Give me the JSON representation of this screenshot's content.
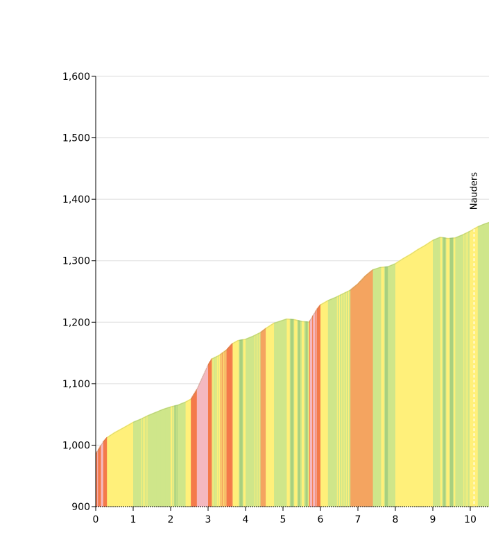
{
  "chart_data": {
    "type": "area",
    "title": "",
    "xlabel": "",
    "ylabel": "",
    "xlim": [
      0,
      10.5
    ],
    "ylim": [
      900,
      1600
    ],
    "x_ticks": [
      "0",
      "1",
      "2",
      "3",
      "4",
      "5",
      "6",
      "7",
      "8",
      "9",
      "10"
    ],
    "y_ticks": [
      "900",
      "1,000",
      "1,100",
      "1,200",
      "1,300",
      "1,400",
      "1,500",
      "1,600"
    ],
    "grid": true,
    "gradient_colors": {
      "flat": "#a8d080",
      "gentle": "#cfe68a",
      "moderate": "#fff07a",
      "steep": "#f4a460",
      "very_steep": "#f47a4a",
      "extreme": "#f4b8c0"
    },
    "series": [
      {
        "points": [
          [
            0.0,
            985
          ],
          [
            0.05,
            990
          ],
          [
            0.1,
            995
          ],
          [
            0.15,
            1000
          ],
          [
            0.2,
            1005
          ],
          [
            0.3,
            1012
          ],
          [
            0.5,
            1020
          ],
          [
            0.8,
            1030
          ],
          [
            1.0,
            1037
          ],
          [
            1.2,
            1042
          ],
          [
            1.4,
            1048
          ],
          [
            1.6,
            1053
          ],
          [
            1.8,
            1058
          ],
          [
            2.0,
            1062
          ],
          [
            2.2,
            1065
          ],
          [
            2.4,
            1070
          ],
          [
            2.55,
            1075
          ],
          [
            2.7,
            1090
          ],
          [
            2.85,
            1110
          ],
          [
            3.0,
            1130
          ],
          [
            3.1,
            1140
          ],
          [
            3.3,
            1146
          ],
          [
            3.5,
            1155
          ],
          [
            3.65,
            1165
          ],
          [
            3.8,
            1170
          ],
          [
            4.0,
            1172
          ],
          [
            4.2,
            1177
          ],
          [
            4.4,
            1183
          ],
          [
            4.55,
            1190
          ],
          [
            4.75,
            1198
          ],
          [
            5.0,
            1203
          ],
          [
            5.1,
            1205
          ],
          [
            5.3,
            1204
          ],
          [
            5.5,
            1201
          ],
          [
            5.7,
            1200
          ],
          [
            5.8,
            1210
          ],
          [
            5.9,
            1220
          ],
          [
            6.0,
            1228
          ],
          [
            6.2,
            1235
          ],
          [
            6.4,
            1240
          ],
          [
            6.6,
            1246
          ],
          [
            6.8,
            1252
          ],
          [
            7.0,
            1262
          ],
          [
            7.2,
            1275
          ],
          [
            7.4,
            1285
          ],
          [
            7.6,
            1289
          ],
          [
            7.8,
            1290
          ],
          [
            8.0,
            1295
          ],
          [
            8.2,
            1303
          ],
          [
            8.4,
            1310
          ],
          [
            8.6,
            1318
          ],
          [
            8.8,
            1325
          ],
          [
            9.0,
            1333
          ],
          [
            9.2,
            1338
          ],
          [
            9.4,
            1336
          ],
          [
            9.6,
            1337
          ],
          [
            9.8,
            1342
          ],
          [
            10.0,
            1348
          ],
          [
            10.2,
            1355
          ],
          [
            10.4,
            1360
          ],
          [
            10.5,
            1362
          ]
        ]
      }
    ],
    "annotations": [
      {
        "label": "Nauders",
        "x": 10.1
      }
    ]
  }
}
